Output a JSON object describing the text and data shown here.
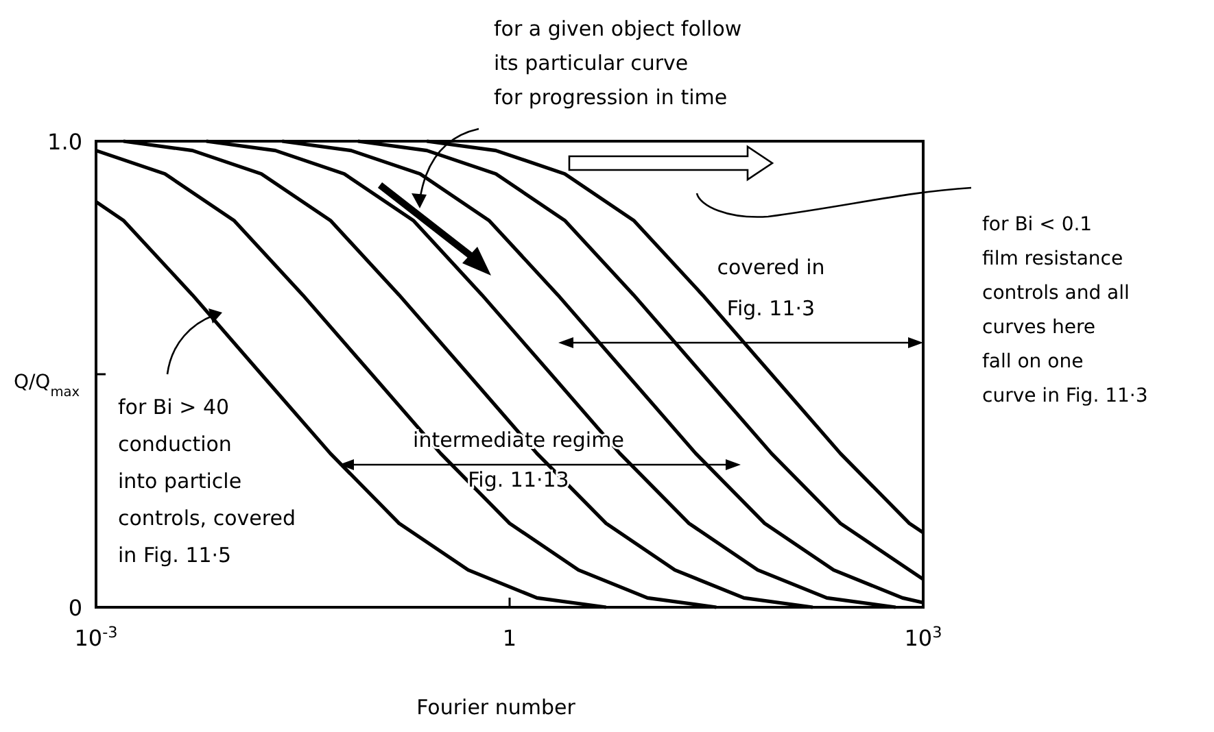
{
  "chart_data": {
    "type": "line",
    "xlabel": "Fourier number",
    "ylabel": "Q/Q$_{max}$",
    "log": "x",
    "xlim": [
      0.001,
      1000
    ],
    "ylim": [
      0,
      1
    ],
    "xticks": [
      {
        "value": 0.001,
        "label": "10$^{-3}$"
      },
      1,
      {
        "value": 1000,
        "label": "10$^{3}$"
      }
    ],
    "yticks": [
      {
        "value": 0,
        "label": "0"
      },
      {
        "value": 0.5,
        "label": null
      },
      {
        "value": 1,
        "label": "1.0"
      }
    ],
    "grid": false,
    "series": [
      {
        "color": "#000000",
        "x": [
          0.001,
          0.00158,
          0.00501,
          0.0158,
          0.0501,
          0.158,
          0.501,
          1.58,
          5.01
        ],
        "values": [
          0.87,
          0.83,
          0.67,
          0.5,
          0.33,
          0.18,
          0.08,
          0.02,
          0
        ]
      },
      {
        "color": "#000000",
        "x": [
          0.001,
          0.00316,
          0.01,
          0.0316,
          0.1,
          0.316,
          1,
          3.16,
          10,
          31.6
        ],
        "values": [
          0.98,
          0.93,
          0.83,
          0.67,
          0.5,
          0.33,
          0.18,
          0.08,
          0.02,
          0
        ]
      },
      {
        "color": "#000000",
        "x": [
          0.00158,
          0.00501,
          0.0158,
          0.0501,
          0.158,
          0.501,
          1.58,
          5.01,
          15.8,
          50.1,
          158
        ],
        "values": [
          1,
          0.98,
          0.93,
          0.83,
          0.67,
          0.5,
          0.33,
          0.18,
          0.08,
          0.02,
          0
        ]
      },
      {
        "color": "#000000",
        "x": [
          0.00631,
          0.02,
          0.0631,
          0.2,
          0.631,
          2,
          6.31,
          20,
          63.1,
          200,
          631
        ],
        "values": [
          1,
          0.98,
          0.93,
          0.83,
          0.67,
          0.5,
          0.33,
          0.18,
          0.08,
          0.02,
          0
        ]
      },
      {
        "color": "#000000",
        "x": [
          0.0224,
          0.0708,
          0.224,
          0.708,
          2.24,
          7.08,
          22.4,
          70.8,
          224,
          708,
          1000
        ],
        "values": [
          1,
          0.98,
          0.93,
          0.83,
          0.67,
          0.5,
          0.33,
          0.18,
          0.08,
          0.02,
          0.01
        ]
      },
      {
        "color": "#000000",
        "x": [
          0.0794,
          0.251,
          0.794,
          2.51,
          7.94,
          25.1,
          79.4,
          251,
          794,
          1000
        ],
        "values": [
          1,
          0.98,
          0.93,
          0.83,
          0.67,
          0.5,
          0.33,
          0.18,
          0.08,
          0.06
        ]
      },
      {
        "color": "#000000",
        "x": [
          0.251,
          0.794,
          2.51,
          7.94,
          25.1,
          79.4,
          251,
          794,
          1000
        ],
        "values": [
          1,
          0.98,
          0.93,
          0.83,
          0.67,
          0.5,
          0.33,
          0.18,
          0.16
        ]
      }
    ],
    "annotations": [
      "for a given object follow\nits particular curve\nfor progression in time",
      "for Bi < 0.1\nfilm resistance\ncontrols and all\ncurves here\nfall on one\ncurve in Fig. 11·3",
      "covered in\nFig. 11·3",
      "intermediate regime\nFig. 11·13",
      "for Bi > 40\nconduction\ninto particle\ncontrols, covered\nin Fig. 11·5"
    ]
  }
}
